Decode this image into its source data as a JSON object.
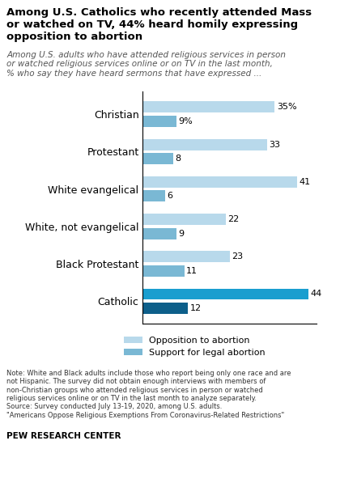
{
  "chart_data": {
    "type": "bar",
    "orientation": "horizontal",
    "title": "Among U.S. Catholics who recently attended Mass\nor watched on TV, 44% heard homily expressing\nopposition to abortion",
    "subtitle": "Among U.S. adults who have attended religious services in person\nor watched religious services online or on TV in the last month,\n% who say they have heard sermons that have expressed ...",
    "annotations": [
      "Note: White and Black adults include those who report being only one race and are\nnot Hispanic. The survey did not obtain enough interviews with members of\nnon-Christian groups who attended religious services in person or watched\nreligious services online or on TV in the last month to analyze separately.\nSource: Survey conducted July 13-19, 2020, among U.S. adults.\n\"Americans Oppose Religious Exemptions From Coronavirus-Related Restrictions\"",
      "PEW RESEARCH CENTER"
    ],
    "categories": [
      "Christian",
      "Protestant",
      "White evangelical",
      "White, not evangelical",
      "Black Protestant",
      "Catholic"
    ],
    "series": [
      {
        "name": "Opposition to abortion",
        "color": "#b8d9eb",
        "colors": [
          "#b8d9eb",
          "#b8d9eb",
          "#b8d9eb",
          "#b8d9eb",
          "#b8d9eb",
          "#1a9ecf"
        ],
        "values": [
          35,
          33,
          41,
          22,
          23,
          44
        ],
        "value_labels": [
          "35%",
          "33",
          "41",
          "22",
          "23",
          "44"
        ]
      },
      {
        "name": "Support for legal abortion",
        "color": "#7ab8d4",
        "colors": [
          "#7ab8d4",
          "#7ab8d4",
          "#7ab8d4",
          "#7ab8d4",
          "#7ab8d4",
          "#0d5f8a"
        ],
        "values": [
          9,
          8,
          6,
          9,
          11,
          12
        ],
        "value_labels": [
          "9%",
          "8",
          "6",
          "9",
          "11",
          "12"
        ]
      }
    ],
    "xlim": [
      0,
      46
    ],
    "data_labels": true,
    "tick_labels": "y",
    "legend": "upper center"
  }
}
